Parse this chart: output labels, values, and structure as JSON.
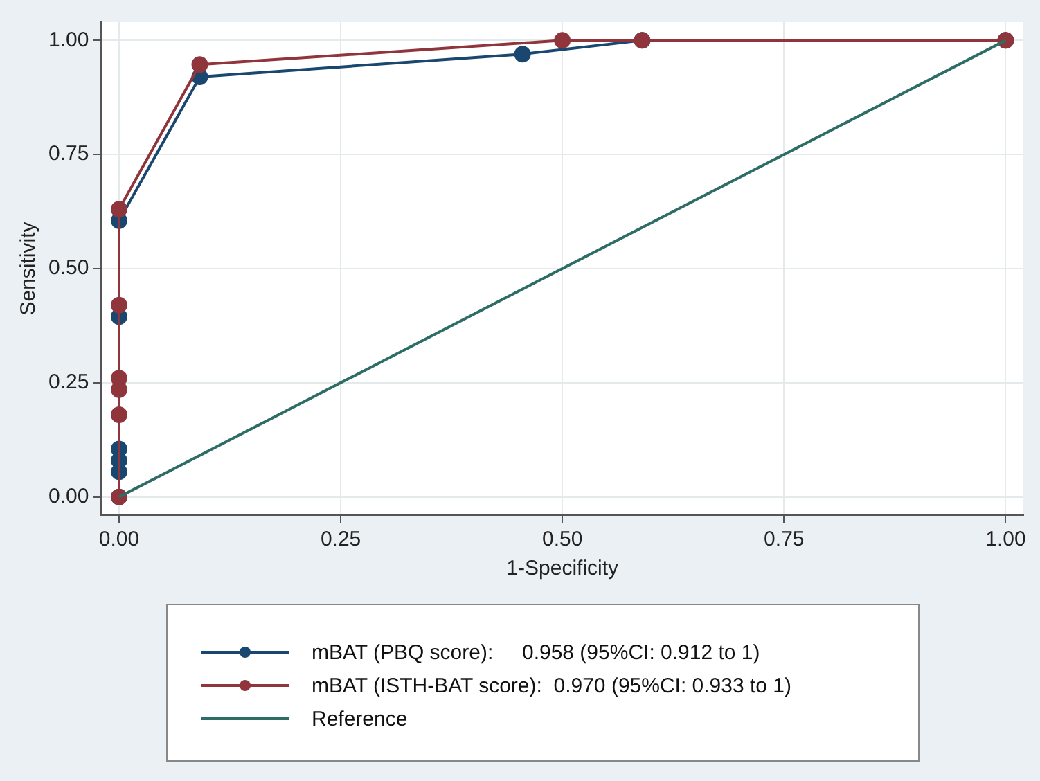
{
  "chart_data": {
    "type": "line",
    "xlabel": "1-Specificity",
    "ylabel": "Sensitivity",
    "xlim": [
      -0.02,
      1.02
    ],
    "ylim": [
      -0.04,
      1.04
    ],
    "xticks": [
      {
        "value": 0,
        "label": "0.00"
      },
      {
        "value": 0.25,
        "label": "0.25"
      },
      {
        "value": 0.5,
        "label": "0.50"
      },
      {
        "value": 0.75,
        "label": "0.75"
      },
      {
        "value": 1,
        "label": "1.00"
      }
    ],
    "yticks": [
      {
        "value": 0,
        "label": "0.00"
      },
      {
        "value": 0.25,
        "label": "0.25"
      },
      {
        "value": 0.5,
        "label": "0.50"
      },
      {
        "value": 0.75,
        "label": "0.75"
      },
      {
        "value": 1,
        "label": "1.00"
      }
    ],
    "grid": true,
    "legend": "bottom",
    "marker": "circle",
    "line_style": "solid",
    "series": [
      {
        "name": "mBAT (PBQ score):     0.958 (95%CI: 0.912 to 1)",
        "color": "#1a476f",
        "x": [
          0,
          0,
          0,
          0,
          0,
          0,
          0.091,
          0.455,
          0.59,
          1
        ],
        "values": [
          0,
          0.055,
          0.08,
          0.105,
          0.395,
          0.605,
          0.92,
          0.97,
          1,
          1
        ]
      },
      {
        "name": "mBAT (ISTH-BAT score):  0.970 (95%CI: 0.933 to 1)",
        "color": "#90353b",
        "x": [
          0,
          0,
          0,
          0,
          0,
          0,
          0.091,
          0.5,
          0.59,
          1
        ],
        "values": [
          0,
          0.18,
          0.235,
          0.26,
          0.42,
          0.63,
          0.947,
          1,
          1,
          1
        ]
      },
      {
        "name": "Reference",
        "color": "#2d6d66",
        "marker": "none",
        "x": [
          0,
          1
        ],
        "values": [
          0,
          1
        ]
      }
    ]
  }
}
